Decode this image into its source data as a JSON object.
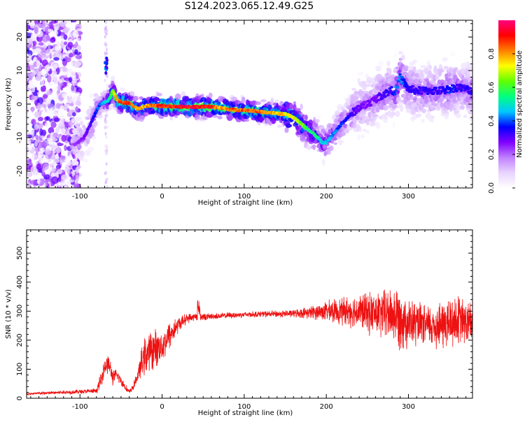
{
  "title": "S124.2023.065.12.49.G25",
  "chart_data": [
    {
      "type": "heatmap",
      "panel": "spectrogram",
      "xlabel": "Height of straight line (km)",
      "ylabel": "Frequency (Hz)",
      "xlim": [
        -165,
        378
      ],
      "ylim": [
        -25,
        25
      ],
      "xticks": [
        -100,
        0,
        100,
        200,
        300
      ],
      "yticks": [
        -20,
        -10,
        0,
        10,
        20
      ],
      "colorbar": {
        "label": "Normalized spectral amplitude",
        "range": [
          0.0,
          1.0
        ],
        "ticks": [
          0.0,
          0.2,
          0.4,
          0.6,
          0.8
        ],
        "tick_labels": [
          "0.0",
          "0.2",
          "0.4",
          "0.6",
          "0.8"
        ],
        "colormap": [
          "#ffffff",
          "#e8d4ff",
          "#c080ff",
          "#8000ff",
          "#0000ff",
          "#00c8ff",
          "#00ff80",
          "#60ff00",
          "#ffff00",
          "#ff8000",
          "#ff0000",
          "#ff0080"
        ]
      },
      "ridge_line": {
        "x": [
          -105,
          -95,
          -85,
          -80,
          -75,
          -70,
          -65,
          -60,
          -55,
          -50,
          -40,
          -30,
          -20,
          -10,
          0,
          20,
          40,
          60,
          70,
          80,
          90,
          100,
          110,
          120,
          130,
          140,
          150,
          160,
          170,
          180,
          190,
          195,
          200,
          210,
          220,
          230,
          240,
          250,
          260,
          270,
          280,
          285,
          290,
          300,
          310,
          320,
          330,
          340,
          350,
          360,
          370,
          378
        ],
        "freq": [
          -12,
          -10,
          -5,
          -2,
          0,
          0.5,
          1.0,
          4.0,
          1.5,
          0.5,
          0.3,
          -1.5,
          -0.5,
          -0.5,
          -0.5,
          -0.8,
          -0.8,
          -0.8,
          -1.0,
          -1.5,
          -1.8,
          -1.8,
          -2.0,
          -2.3,
          -2.5,
          -2.8,
          -3.0,
          -4.0,
          -6.0,
          -8.0,
          -10.0,
          -11.5,
          -11.5,
          -8.5,
          -5.5,
          -3.0,
          -1.0,
          0.0,
          1.5,
          3.0,
          4.0,
          4.0,
          8.0,
          4.5,
          4.0,
          4.0,
          4.0,
          4.0,
          4.5,
          5.0,
          4.5,
          4.0
        ],
        "amplitude": [
          0.25,
          0.3,
          0.35,
          0.4,
          0.45,
          0.5,
          0.55,
          0.7,
          0.85,
          0.95,
          0.95,
          0.85,
          0.85,
          0.9,
          0.95,
          1.0,
          1.0,
          1.0,
          0.85,
          0.9,
          0.9,
          0.9,
          0.9,
          0.9,
          0.85,
          0.85,
          0.8,
          0.8,
          0.7,
          0.6,
          0.55,
          0.5,
          0.5,
          0.45,
          0.4,
          0.35,
          0.3,
          0.3,
          0.3,
          0.35,
          0.35,
          0.45,
          0.45,
          0.35,
          0.35,
          0.35,
          0.35,
          0.35,
          0.4,
          0.35,
          0.35,
          0.35
        ]
      }
    },
    {
      "type": "line",
      "panel": "snr",
      "xlabel": "Height of straight line (km)",
      "ylabel": "SNR (10 * v/v)",
      "xlim": [
        -165,
        378
      ],
      "ylim": [
        0,
        580
      ],
      "xticks": [
        -100,
        0,
        100,
        200,
        300
      ],
      "yticks": [
        0,
        100,
        200,
        300,
        400,
        500
      ],
      "color": "#ee1111",
      "series": [
        {
          "x": [
            -165,
            -80,
            -75,
            -70,
            -65,
            -60,
            -55,
            -50,
            -45,
            -40,
            -35,
            -30,
            -25,
            -20,
            -10,
            0,
            10,
            20,
            30,
            40,
            44,
            48,
            60,
            80,
            100,
            120,
            140,
            160,
            180,
            200,
            220,
            240,
            260,
            280,
            290,
            300,
            320,
            340,
            350,
            360,
            370,
            378
          ],
          "mean": [
            15,
            25,
            60,
            110,
            120,
            70,
            80,
            60,
            40,
            20,
            40,
            75,
            120,
            150,
            170,
            180,
            220,
            255,
            275,
            280,
            290,
            280,
            282,
            285,
            288,
            290,
            290,
            292,
            295,
            300,
            300,
            300,
            290,
            290,
            280,
            260,
            250,
            250,
            260,
            270,
            260,
            250
          ],
          "spread": [
            5,
            10,
            30,
            40,
            40,
            30,
            25,
            20,
            15,
            10,
            15,
            20,
            60,
            80,
            80,
            60,
            60,
            30,
            20,
            15,
            30,
            15,
            12,
            12,
            12,
            12,
            14,
            15,
            25,
            40,
            55,
            70,
            90,
            110,
            130,
            100,
            80,
            100,
            110,
            100,
            90,
            90
          ]
        }
      ]
    }
  ]
}
